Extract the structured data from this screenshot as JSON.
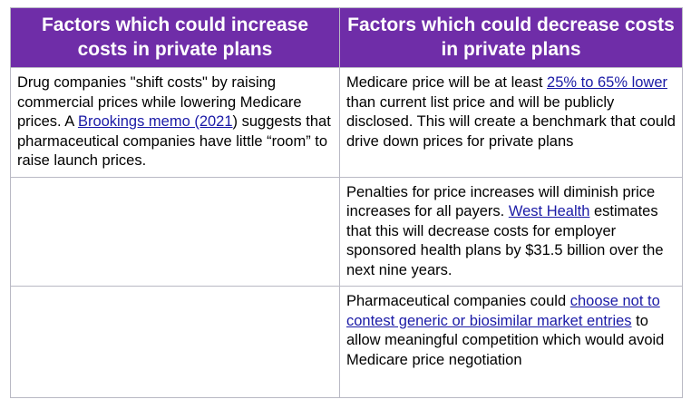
{
  "header": {
    "increase": "Factors which could increase costs in private plans",
    "decrease": "Factors which could decrease costs in private plans"
  },
  "rows": [
    {
      "increase": {
        "t1": "Drug companies \"shift costs\" by raising commercial prices while lowering Medicare prices. A ",
        "link": "Brookings memo (2021",
        "t2": ") suggests that pharmaceutical companies have little “room” to raise launch prices."
      },
      "decrease": {
        "t1": "Medicare price will be at least ",
        "link": "25% to 65% lower",
        "t2": " than current list price and will be publicly disclosed. This will create a benchmark that could drive down prices for private plans"
      }
    },
    {
      "increase": {},
      "decrease": {
        "t1": "Penalties for price increases will diminish price increases for all payers. ",
        "link": "West Health",
        "t2": " estimates that this will decrease costs for employer sponsored health plans by $31.5 billion over the next nine years."
      }
    },
    {
      "increase": {},
      "decrease": {
        "t1": "Pharmaceutical companies could ",
        "link": "choose not to contest generic or biosimilar market entries",
        "t2": " to allow meaningful competition which would avoid Medicare price negotiation"
      }
    }
  ]
}
